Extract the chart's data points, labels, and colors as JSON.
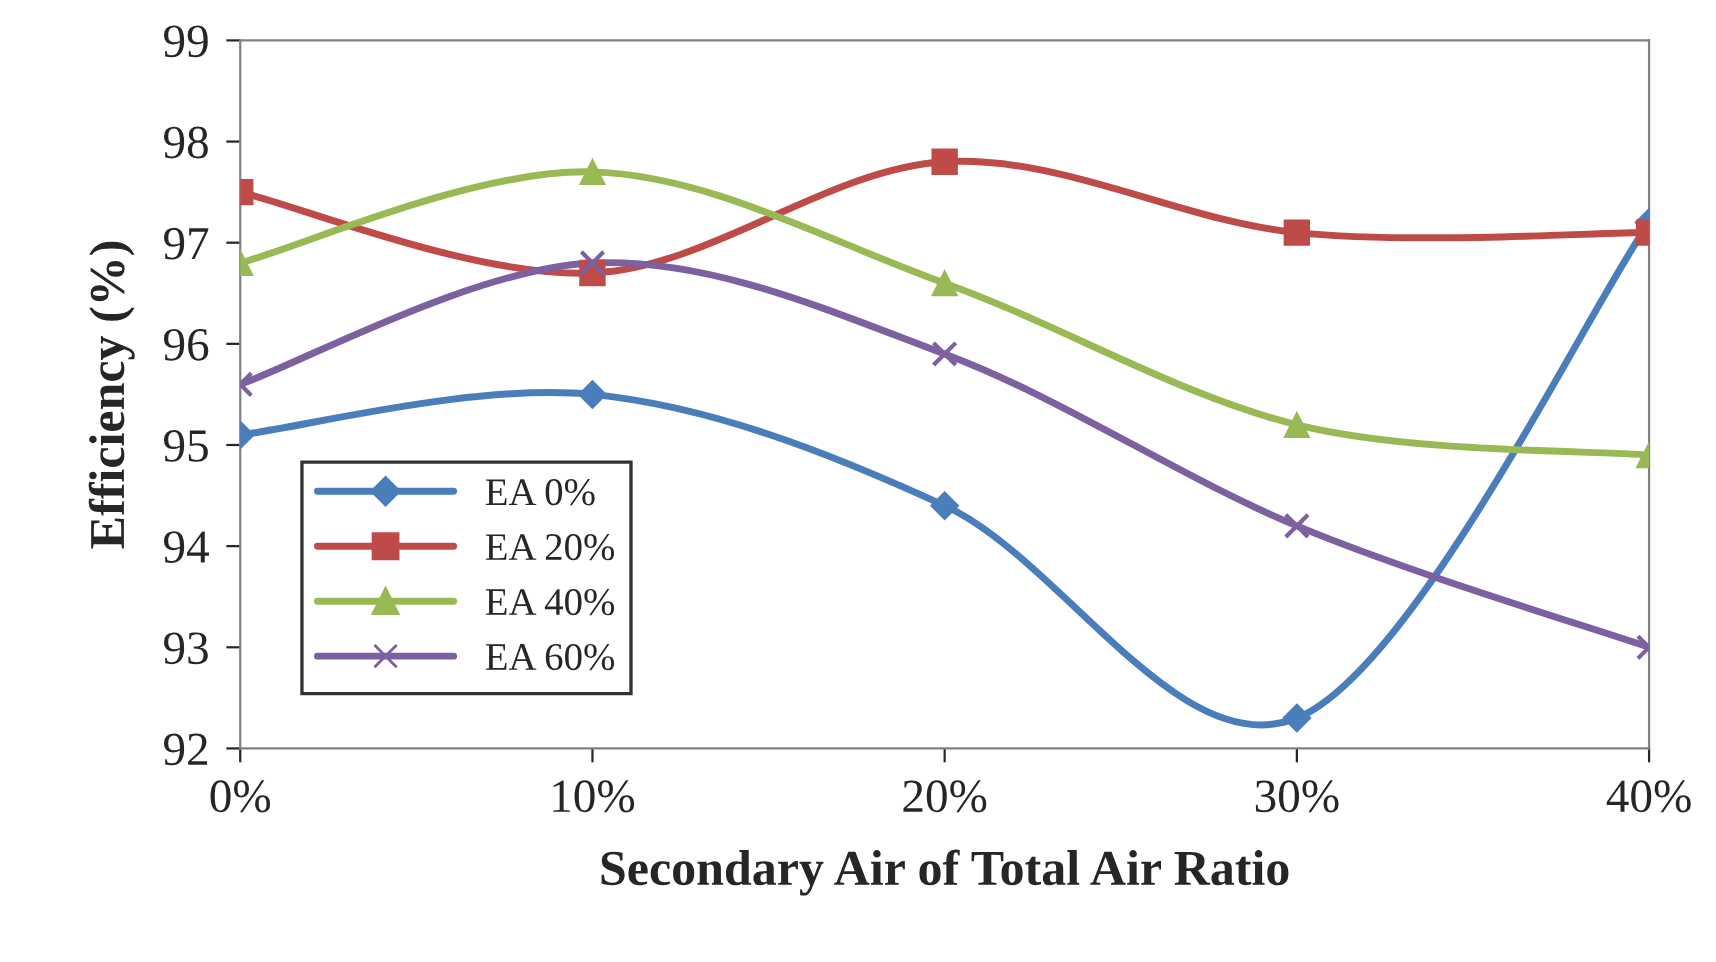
{
  "chart_data": {
    "type": "line",
    "xlabel": "Secondary Air of Total Air Ratio",
    "ylabel": "Efficiency (%)",
    "x": [
      0,
      10,
      20,
      30,
      40
    ],
    "xlim": [
      0,
      40
    ],
    "xticks": [
      {
        "value": 0,
        "label": "0%"
      },
      {
        "value": 10,
        "label": "10%"
      },
      {
        "value": 20,
        "label": "20%"
      },
      {
        "value": 30,
        "label": "30%"
      },
      {
        "value": 40,
        "label": "40%"
      }
    ],
    "ylim": [
      92,
      99
    ],
    "yticks": [
      92,
      93,
      94,
      95,
      96,
      97,
      98,
      99
    ],
    "grid": false,
    "legend": "bottom left",
    "line_style": "solid",
    "series": [
      {
        "name": "EA 0%",
        "color": "#4a7ebb",
        "marker": "diamond",
        "values": [
          95.1,
          95.5,
          94.4,
          92.3,
          97.2
        ]
      },
      {
        "name": "EA 20%",
        "color": "#be4b48",
        "marker": "square",
        "values": [
          97.5,
          96.7,
          97.8,
          97.1,
          97.1
        ]
      },
      {
        "name": "EA 40%",
        "color": "#98b954",
        "marker": "triangle",
        "values": [
          96.8,
          97.7,
          96.6,
          95.2,
          94.9
        ]
      },
      {
        "name": "EA 60%",
        "color": "#7d60a0",
        "marker": "cross",
        "values": [
          95.6,
          96.8,
          95.9,
          94.2,
          93.0
        ]
      }
    ]
  }
}
